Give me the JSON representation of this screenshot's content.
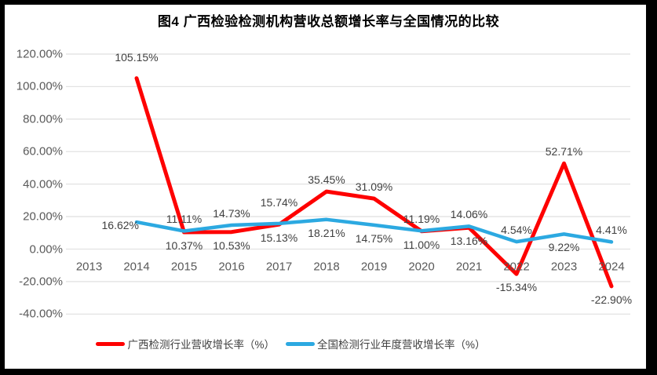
{
  "frame_color": "#000000",
  "chart_data": {
    "type": "line",
    "title": "图4 广西检验检测机构营收总额增长率与全国情况的比较",
    "categories": [
      "2013",
      "2014",
      "2015",
      "2016",
      "2017",
      "2018",
      "2019",
      "2020",
      "2021",
      "2022",
      "2023",
      "2024"
    ],
    "grid": true,
    "legend_position": "bottom",
    "y_axis": {
      "min": -40,
      "max": 120,
      "step": 20,
      "format": "percent",
      "tick_labels": [
        "120.00%",
        "100.00%",
        "80.00%",
        "60.00%",
        "40.00%",
        "20.00%",
        "0.00%",
        "-20.00%",
        "-40.00%"
      ],
      "tick_values": [
        120,
        100,
        80,
        60,
        40,
        20,
        0,
        -20,
        -40
      ]
    },
    "series": [
      {
        "name": "广西检测行业营收增长率（%）",
        "color": "#FE0000",
        "values": [
          null,
          105.15,
          10.37,
          10.53,
          15.13,
          35.45,
          31.09,
          11.0,
          13.16,
          -15.34,
          52.71,
          -22.9
        ],
        "labels": [
          null,
          "105.15%",
          "10.37%",
          "10.53%",
          "15.13%",
          "35.45%",
          "31.09%",
          "11.00%",
          "13.16%",
          "-15.34%",
          "52.71%",
          "-22.90%"
        ],
        "label_pos": [
          null,
          "above-far",
          "below",
          "below",
          "below",
          "above",
          "above",
          "below",
          "below",
          "below",
          "above",
          "below"
        ]
      },
      {
        "name": "全国检测行业年度营收增长率（%）",
        "color": "#2CA9E1",
        "values": [
          null,
          16.62,
          11.11,
          14.73,
          15.74,
          18.21,
          14.75,
          11.19,
          14.06,
          4.54,
          9.22,
          4.41
        ],
        "labels": [
          null,
          "16.62%",
          "11.11%",
          "14.73%",
          "15.74%",
          "18.21%",
          "14.75%",
          "11.19%",
          "14.06%",
          "4.54%",
          "9.22%",
          "4.41%"
        ],
        "label_pos": [
          null,
          "left",
          "above",
          "above",
          "above-far",
          "below",
          "below",
          "above",
          "above",
          "above",
          "below",
          "above"
        ]
      }
    ],
    "colors": {
      "gridline": "#E2E2E2",
      "axis_text": "#595959",
      "data_label_text": "#404040",
      "title_text": "#000000"
    }
  }
}
